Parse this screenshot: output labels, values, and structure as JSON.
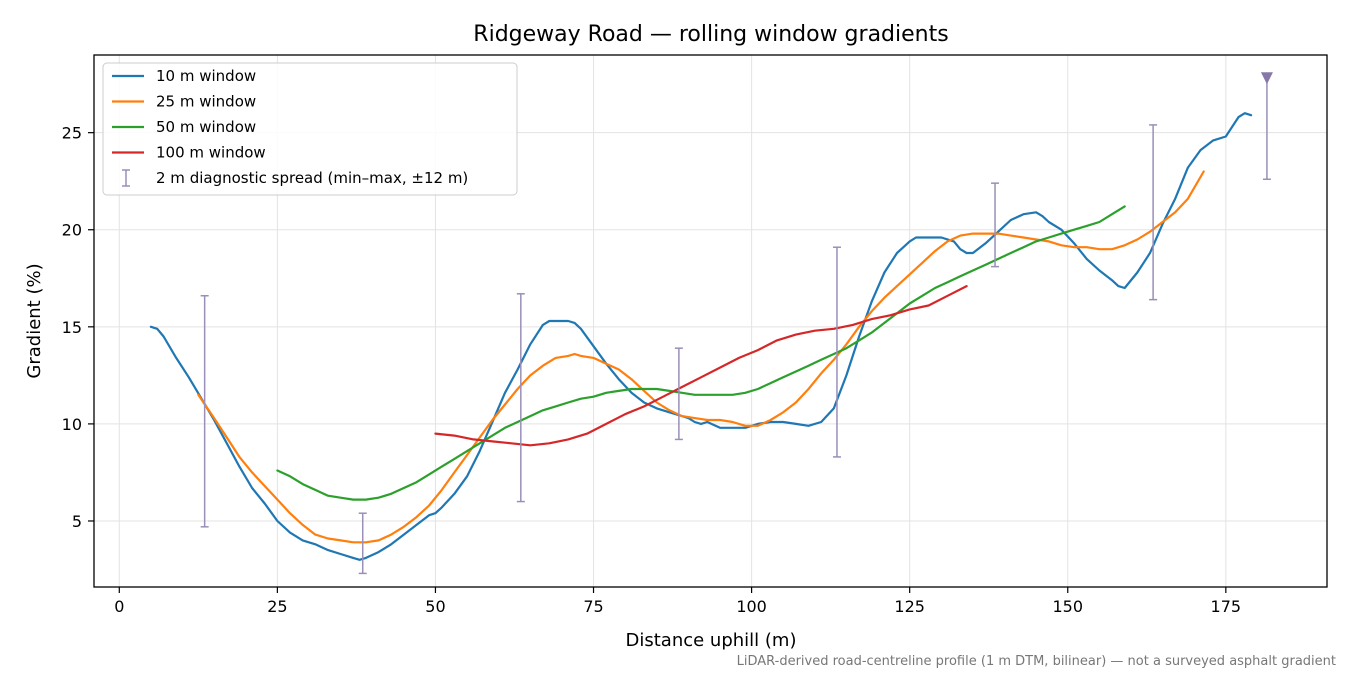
{
  "chart_data": {
    "type": "line",
    "title": "Ridgeway Road — rolling window gradients",
    "xlabel": "Distance uphill (m)",
    "ylabel": "Gradient (%)",
    "xlim": [
      -4,
      191
    ],
    "ylim": [
      1.6,
      29
    ],
    "xticks": [
      0,
      25,
      50,
      75,
      100,
      125,
      150,
      175
    ],
    "yticks": [
      5,
      10,
      15,
      20,
      25
    ],
    "grid": true,
    "legend_position": "top-left",
    "footnote": "LiDAR-derived road-centreline profile (1 m DTM, bilinear) — not a surveyed asphalt gradient",
    "series": [
      {
        "name": "10 m window",
        "color": "#1f77b4",
        "x": [
          5,
          6,
          7,
          9,
          11,
          13,
          15,
          17,
          19,
          21,
          23,
          25,
          27,
          29,
          31,
          33,
          35,
          37,
          38,
          39,
          41,
          43,
          45,
          47,
          49,
          50,
          51,
          53,
          55,
          57,
          59,
          61,
          63,
          65,
          67,
          68,
          69,
          70,
          71,
          72,
          73,
          75,
          77,
          79,
          81,
          83,
          85,
          87,
          89,
          90,
          91,
          92,
          93,
          95,
          97,
          99,
          101,
          103,
          105,
          107,
          109,
          111,
          113,
          115,
          117,
          119,
          121,
          123,
          124,
          125,
          126,
          127,
          128,
          130,
          132,
          133,
          134,
          135,
          137,
          139,
          141,
          143,
          145,
          146,
          147,
          149,
          151,
          153,
          155,
          157,
          158,
          159,
          161,
          163,
          165,
          167,
          169,
          171,
          173,
          175,
          177,
          178,
          179
        ],
        "y": [
          15,
          14.9,
          14.5,
          13.4,
          12.4,
          11.3,
          10.2,
          9,
          7.8,
          6.7,
          5.9,
          5,
          4.4,
          4,
          3.8,
          3.5,
          3.3,
          3.1,
          3,
          3.1,
          3.4,
          3.8,
          4.3,
          4.8,
          5.3,
          5.4,
          5.7,
          6.4,
          7.3,
          8.6,
          10.1,
          11.6,
          12.8,
          14.1,
          15.1,
          15.3,
          15.3,
          15.3,
          15.3,
          15.2,
          14.9,
          14,
          13.1,
          12.3,
          11.6,
          11.1,
          10.8,
          10.6,
          10.4,
          10.3,
          10.1,
          10,
          10.1,
          9.8,
          9.8,
          9.8,
          10,
          10.1,
          10.1,
          10,
          9.9,
          10.1,
          10.8,
          12.5,
          14.5,
          16.3,
          17.8,
          18.8,
          19.1,
          19.4,
          19.6,
          19.6,
          19.6,
          19.6,
          19.4,
          19,
          18.8,
          18.8,
          19.3,
          19.9,
          20.5,
          20.8,
          20.9,
          20.7,
          20.4,
          20,
          19.3,
          18.5,
          17.9,
          17.4,
          17.1,
          17,
          17.8,
          18.8,
          20.3,
          21.6,
          23.2,
          24.1,
          24.6,
          24.8,
          25.8,
          26,
          25.9
        ]
      },
      {
        "name": "25 m window",
        "color": "#ff7f0e",
        "x": [
          12.5,
          15,
          17,
          19,
          21,
          23,
          25,
          27,
          29,
          31,
          33,
          35,
          37,
          38,
          39,
          41,
          43,
          45,
          47,
          49,
          51,
          53,
          55,
          57,
          59,
          61,
          63,
          65,
          67,
          69,
          71,
          72,
          73,
          75,
          77,
          79,
          81,
          83,
          85,
          87,
          89,
          91,
          93,
          95,
          97,
          99,
          101,
          103,
          105,
          107,
          109,
          111,
          113,
          115,
          117,
          119,
          121,
          123,
          125,
          127,
          129,
          131,
          133,
          135,
          137,
          139,
          141,
          143,
          145,
          147,
          149,
          151,
          153,
          155,
          157,
          159,
          161,
          163,
          165,
          167,
          169,
          171.5
        ],
        "y": [
          11.5,
          10.3,
          9.3,
          8.3,
          7.5,
          6.8,
          6.1,
          5.4,
          4.8,
          4.3,
          4.1,
          4,
          3.9,
          3.9,
          3.9,
          4,
          4.3,
          4.7,
          5.2,
          5.8,
          6.6,
          7.5,
          8.4,
          9.3,
          10.2,
          11,
          11.8,
          12.5,
          13,
          13.4,
          13.5,
          13.6,
          13.5,
          13.4,
          13.1,
          12.8,
          12.3,
          11.7,
          11.1,
          10.7,
          10.4,
          10.3,
          10.2,
          10.2,
          10.1,
          9.9,
          9.9,
          10.2,
          10.6,
          11.1,
          11.8,
          12.6,
          13.3,
          14.1,
          15,
          15.8,
          16.5,
          17.1,
          17.7,
          18.3,
          18.9,
          19.4,
          19.7,
          19.8,
          19.8,
          19.8,
          19.7,
          19.6,
          19.5,
          19.4,
          19.2,
          19.1,
          19.1,
          19,
          19,
          19.2,
          19.5,
          19.9,
          20.4,
          20.9,
          21.6,
          23
        ]
      },
      {
        "name": "50 m window",
        "color": "#2ca02c",
        "x": [
          25,
          27,
          29,
          31,
          33,
          35,
          37,
          39,
          41,
          43,
          45,
          47,
          49,
          51,
          53,
          55,
          57,
          59,
          61,
          63,
          65,
          67,
          69,
          71,
          73,
          75,
          77,
          79,
          81,
          83,
          85,
          87,
          89,
          91,
          93,
          95,
          97,
          99,
          101,
          103,
          105,
          107,
          109,
          111,
          113,
          115,
          117,
          119,
          121,
          123,
          125,
          127,
          129,
          131,
          133,
          135,
          137,
          139,
          141,
          143,
          145,
          147,
          149,
          151,
          153,
          155,
          157,
          159
        ],
        "y": [
          7.6,
          7.3,
          6.9,
          6.6,
          6.3,
          6.2,
          6.1,
          6.1,
          6.2,
          6.4,
          6.7,
          7,
          7.4,
          7.8,
          8.2,
          8.6,
          9,
          9.4,
          9.8,
          10.1,
          10.4,
          10.7,
          10.9,
          11.1,
          11.3,
          11.4,
          11.6,
          11.7,
          11.8,
          11.8,
          11.8,
          11.7,
          11.6,
          11.5,
          11.5,
          11.5,
          11.5,
          11.6,
          11.8,
          12.1,
          12.4,
          12.7,
          13,
          13.3,
          13.6,
          13.9,
          14.3,
          14.7,
          15.2,
          15.7,
          16.2,
          16.6,
          17,
          17.3,
          17.6,
          17.9,
          18.2,
          18.5,
          18.8,
          19.1,
          19.4,
          19.6,
          19.8,
          20,
          20.2,
          20.4,
          20.8,
          21.2
        ]
      },
      {
        "name": "100 m window",
        "color": "#d62728",
        "x": [
          50,
          53,
          56,
          59,
          62,
          65,
          68,
          71,
          74,
          77,
          80,
          83,
          86,
          89,
          92,
          95,
          98,
          101,
          104,
          107,
          110,
          113,
          116,
          119,
          122,
          125,
          128,
          131,
          134
        ],
        "y": [
          9.5,
          9.4,
          9.2,
          9.1,
          9,
          8.9,
          9,
          9.2,
          9.5,
          10,
          10.5,
          10.9,
          11.4,
          11.9,
          12.4,
          12.9,
          13.4,
          13.8,
          14.3,
          14.6,
          14.8,
          14.9,
          15.1,
          15.4,
          15.6,
          15.9,
          16.1,
          16.6,
          17.1
        ]
      }
    ],
    "error_bars": {
      "name": "2 m diagnostic spread (min–max, ±12 m)",
      "color": "#9a8fb8",
      "points": [
        {
          "x": 13.5,
          "low": 4.7,
          "high": 16.6
        },
        {
          "x": 38.5,
          "low": 2.3,
          "high": 5.4
        },
        {
          "x": 63.5,
          "low": 6,
          "high": 16.7
        },
        {
          "x": 88.5,
          "low": 9.2,
          "high": 13.9
        },
        {
          "x": 113.5,
          "low": 8.3,
          "high": 19.1
        },
        {
          "x": 138.5,
          "low": 18.1,
          "high": 22.4
        },
        {
          "x": 163.5,
          "low": 16.4,
          "high": 25.4
        },
        {
          "x": 181.5,
          "low": 22.6,
          "high": 27.8
        }
      ]
    }
  }
}
